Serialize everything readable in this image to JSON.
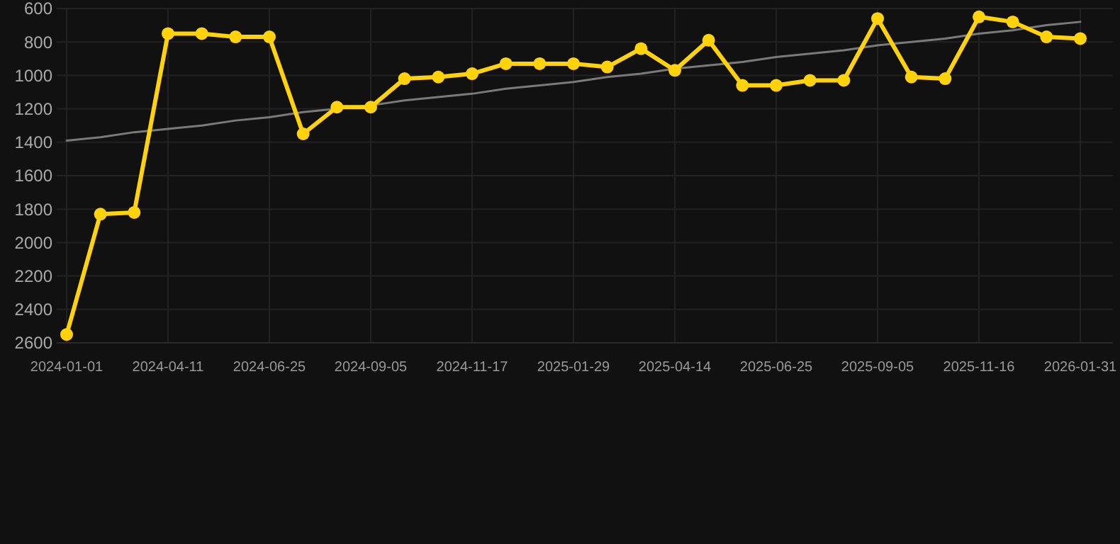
{
  "chart_data": {
    "type": "line",
    "categories": [
      "2024-01-01",
      null,
      null,
      "2024-04-11",
      null,
      null,
      "2024-06-25",
      null,
      null,
      "2024-09-05",
      null,
      null,
      "2024-11-17",
      null,
      null,
      "2025-01-29",
      null,
      null,
      "2025-04-14",
      null,
      null,
      "2025-06-25",
      null,
      null,
      "2025-09-05",
      null,
      null,
      "2025-11-16",
      null,
      null,
      "2026-01-31"
    ],
    "series": [
      {
        "color": "#ffd20a",
        "marker": "circle",
        "values": [
          2550,
          1830,
          1820,
          750,
          750,
          770,
          770,
          1350,
          1190,
          1190,
          1020,
          1010,
          990,
          930,
          930,
          930,
          950,
          840,
          970,
          790,
          1060,
          1060,
          1030,
          1030,
          660,
          1010,
          1020,
          650,
          680,
          770,
          780
        ]
      },
      {
        "color": "#7a7a7a",
        "marker": "none",
        "values": [
          1390,
          1370,
          1340,
          1320,
          1300,
          1270,
          1250,
          1220,
          1200,
          1180,
          1150,
          1130,
          1110,
          1080,
          1060,
          1040,
          1010,
          990,
          960,
          940,
          920,
          890,
          870,
          850,
          820,
          800,
          780,
          750,
          730,
          700,
          680
        ]
      }
    ],
    "ylim": [
      2600,
      600
    ],
    "yticks": [
      600,
      800,
      1000,
      1200,
      1400,
      1600,
      1800,
      2000,
      2200,
      2400,
      2600
    ],
    "grid": true
  }
}
